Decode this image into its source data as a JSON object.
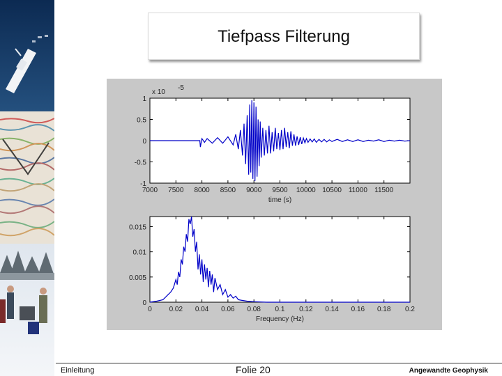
{
  "slide": {
    "title": "Tiefpass Filterung",
    "footer_left": "Einleitung",
    "footer_center": "Folie 20",
    "footer_right": "Angewandte Geophysik"
  },
  "colors": {
    "trace": "#0000c8",
    "figure_bg": "#c8c8c8",
    "axes_bg": "#ffffff"
  },
  "chart_data": [
    {
      "type": "line",
      "title": "",
      "xlabel": "time (s)",
      "ylabel": "",
      "exponent_label": "x 10",
      "exponent_power": "-5",
      "xlim": [
        7000,
        12000
      ],
      "ylim": [
        -1,
        1
      ],
      "xticks": [
        "7000",
        "7500",
        "8000",
        "8500",
        "9000",
        "9500",
        "10000",
        "10500",
        "11000",
        "11500"
      ],
      "xtick_values": [
        7000,
        7500,
        8000,
        8500,
        9000,
        9500,
        10000,
        10500,
        11000,
        11500
      ],
      "yticks": [
        "1",
        "0.5",
        "0",
        "-0.5",
        "-1"
      ],
      "ytick_values": [
        1,
        0.5,
        0,
        -0.5,
        -1
      ],
      "grid": false,
      "series": [
        {
          "x": [
            7000,
            7960,
            7970,
            8000,
            8050,
            8100,
            8200,
            8300,
            8400,
            8500,
            8600,
            8650,
            8700,
            8740,
            8780,
            8810,
            8840,
            8870,
            8900,
            8920,
            8940,
            8960,
            8980,
            9000,
            9020,
            9040,
            9060,
            9080,
            9100,
            9120,
            9140,
            9170,
            9200,
            9230,
            9260,
            9290,
            9320,
            9350,
            9380,
            9410,
            9440,
            9470,
            9500,
            9530,
            9560,
            9590,
            9620,
            9650,
            9680,
            9710,
            9740,
            9770,
            9800,
            9830,
            9860,
            9890,
            9920,
            9950,
            9980,
            10010,
            10040,
            10080,
            10120,
            10160,
            10200,
            10250,
            10300,
            10350,
            10400,
            10450,
            10500,
            10600,
            10700,
            10800,
            10900,
            11000,
            11100,
            11200,
            11300,
            11400,
            11500,
            11600,
            11700,
            11800,
            11900,
            12000
          ],
          "y": [
            0,
            0,
            -0.15,
            0.05,
            -0.04,
            0.05,
            -0.06,
            0.07,
            -0.06,
            0.09,
            -0.1,
            0.15,
            -0.2,
            0.25,
            -0.35,
            0.4,
            -0.55,
            0.6,
            -0.8,
            0.85,
            -0.75,
            0.95,
            -0.9,
            0.9,
            -0.95,
            0.8,
            -0.85,
            0.5,
            -0.6,
            0.45,
            -0.4,
            0.3,
            -0.35,
            0.25,
            -0.3,
            0.35,
            -0.3,
            0.2,
            -0.25,
            0.3,
            -0.2,
            0.18,
            -0.22,
            0.25,
            -0.2,
            0.3,
            -0.15,
            0.2,
            -0.18,
            0.22,
            -0.12,
            0.15,
            -0.12,
            0.1,
            -0.1,
            0.08,
            -0.08,
            0.06,
            -0.05,
            0.05,
            -0.04,
            0.04,
            -0.03,
            0.04,
            -0.04,
            0.03,
            -0.03,
            0.03,
            -0.03,
            0.02,
            -0.02,
            0.03,
            -0.02,
            0.02,
            -0.02,
            0.02,
            -0.02,
            0.01,
            -0.01,
            0.02,
            -0.02,
            0.01,
            -0.01,
            0.01,
            -0.01,
            0
          ]
        }
      ]
    },
    {
      "type": "line",
      "title": "",
      "xlabel": "Frequency (Hz)",
      "ylabel": "",
      "xlim": [
        0,
        0.2
      ],
      "ylim": [
        0,
        0.017
      ],
      "xticks": [
        "0",
        "0.02",
        "0.04",
        "0.06",
        "0.08",
        "0.1",
        "0.12",
        "0.14",
        "0.16",
        "0.18",
        "0.2"
      ],
      "xtick_values": [
        0,
        0.02,
        0.04,
        0.06,
        0.08,
        0.1,
        0.12,
        0.14,
        0.16,
        0.18,
        0.2
      ],
      "yticks": [
        "0.015",
        "0.01",
        "0.005",
        "0"
      ],
      "ytick_values": [
        0.015,
        0.01,
        0.005,
        0
      ],
      "grid": false,
      "series": [
        {
          "x": [
            0,
            0.005,
            0.01,
            0.012,
            0.014,
            0.016,
            0.018,
            0.02,
            0.021,
            0.022,
            0.023,
            0.024,
            0.025,
            0.026,
            0.027,
            0.028,
            0.029,
            0.03,
            0.031,
            0.032,
            0.033,
            0.034,
            0.035,
            0.036,
            0.037,
            0.038,
            0.039,
            0.04,
            0.041,
            0.042,
            0.043,
            0.044,
            0.045,
            0.046,
            0.047,
            0.048,
            0.049,
            0.05,
            0.052,
            0.054,
            0.056,
            0.058,
            0.06,
            0.062,
            0.064,
            0.066,
            0.068,
            0.07,
            0.075,
            0.08,
            0.09,
            0.1,
            0.12,
            0.14,
            0.16,
            0.18,
            0.2
          ],
          "y": [
            0,
            0.0002,
            0.0005,
            0.001,
            0.0015,
            0.002,
            0.0028,
            0.0045,
            0.0035,
            0.006,
            0.005,
            0.0085,
            0.0075,
            0.011,
            0.01,
            0.0135,
            0.012,
            0.0165,
            0.0155,
            0.017,
            0.013,
            0.0145,
            0.01,
            0.012,
            0.0065,
            0.0095,
            0.0055,
            0.0085,
            0.004,
            0.0075,
            0.0045,
            0.0068,
            0.003,
            0.0062,
            0.0035,
            0.0055,
            0.002,
            0.0048,
            0.0025,
            0.0035,
            0.0015,
            0.0025,
            0.001,
            0.0015,
            0.0008,
            0.0012,
            0.0005,
            0.0004,
            0.0002,
            0.0001,
            0,
            0,
            0,
            0,
            0,
            0,
            0
          ]
        }
      ]
    }
  ]
}
